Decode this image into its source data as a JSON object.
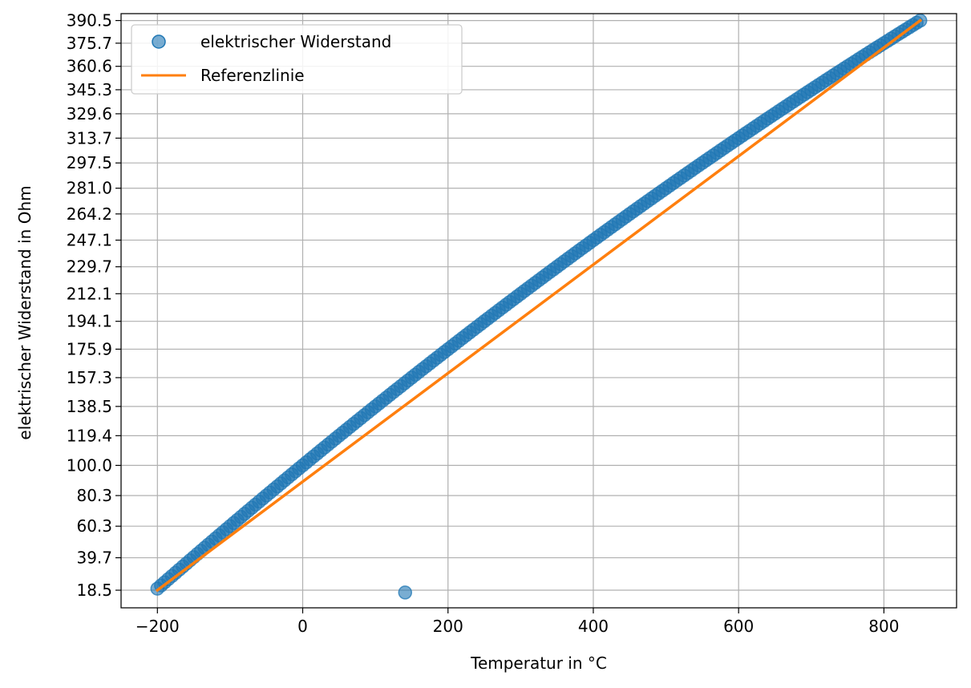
{
  "chart_data": {
    "type": "scatter",
    "xlabel": "Temperatur in °C",
    "ylabel": "elektrischer Widerstand in Ohm",
    "xlim": [
      -250,
      900
    ],
    "ylim": [
      7,
      395
    ],
    "xticks": [
      -200,
      0,
      200,
      400,
      600,
      800
    ],
    "xtick_labels": [
      "−200",
      "0",
      "200",
      "400",
      "600",
      "800"
    ],
    "yticks": [
      18.5,
      39.7,
      60.3,
      80.3,
      100.0,
      119.4,
      138.5,
      157.3,
      175.9,
      194.1,
      212.1,
      229.7,
      247.1,
      264.2,
      281.0,
      297.5,
      313.7,
      329.6,
      345.3,
      360.6,
      375.7,
      390.5
    ],
    "ytick_labels": [
      "18.5",
      "39.7",
      "60.3",
      "80.3",
      "100.0",
      "119.4",
      "138.5",
      "157.3",
      "175.9",
      "194.1",
      "212.1",
      "229.7",
      "247.1",
      "264.2",
      "281.0",
      "297.5",
      "313.7",
      "329.6",
      "345.3",
      "360.6",
      "375.7",
      "390.5"
    ],
    "grid": true,
    "legend_position": "top-left",
    "series": [
      {
        "name": "elektrischer Widerstand",
        "kind": "markers",
        "color": "#1f77b4",
        "x_start": -200,
        "x_end": 850,
        "x_step": 5,
        "r0": 100.0,
        "coef_a": 0.0039083,
        "coef_b": -5.775e-07,
        "outliers": [
          {
            "x": 141,
            "y": 17.0
          }
        ]
      },
      {
        "name": "Referenzlinie",
        "kind": "line",
        "color": "#ff7f0e",
        "x": [
          -200,
          850
        ],
        "y": [
          18.5,
          390.5
        ]
      }
    ]
  }
}
